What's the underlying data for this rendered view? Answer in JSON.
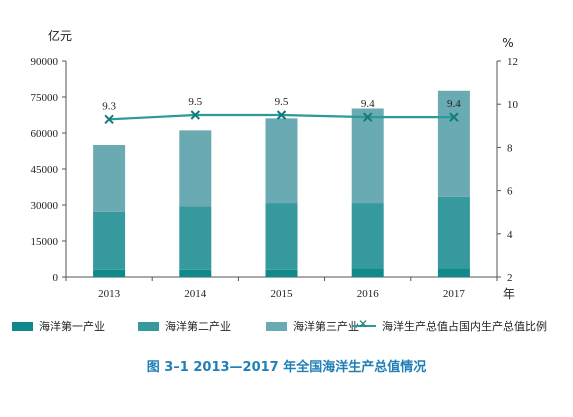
{
  "chart_data": {
    "type": "bar",
    "stacked": true,
    "categories": [
      "2013",
      "2014",
      "2015",
      "2016",
      "2017"
    ],
    "series": [
      {
        "name": "海洋第一产业",
        "values": [
          3000,
          3000,
          3000,
          3600,
          3600
        ],
        "color": "#0e8a8a"
      },
      {
        "name": "海洋第二产业",
        "values": [
          24200,
          26500,
          27800,
          27200,
          29800
        ],
        "color": "#36999e"
      },
      {
        "name": "海洋第三产业",
        "values": [
          27800,
          31600,
          35300,
          39400,
          44200
        ],
        "color": "#6aaab3"
      }
    ],
    "line_series": {
      "name": "海洋生产总值占国内生产总值比例",
      "values": [
        9.3,
        9.5,
        9.5,
        9.4,
        9.4
      ],
      "labels": [
        "9.3",
        "9.5",
        "9.5",
        "9.4",
        "9.4"
      ],
      "color": "#2b9a98",
      "axis": "right"
    },
    "left_axis": {
      "unit": "亿元",
      "min": 0,
      "max": 90000,
      "ticks": [
        "0",
        "15000",
        "30000",
        "45000",
        "60000",
        "75000",
        "90000"
      ]
    },
    "right_axis": {
      "unit": "%",
      "min": 2,
      "max": 12,
      "ticks": [
        "2",
        "4",
        "6",
        "8",
        "10",
        "12"
      ]
    },
    "xlabel": "年",
    "legend_position": "bottom",
    "grid": false
  },
  "caption": "图 3–1  2013—2017 年全国海洋生产总值情况"
}
